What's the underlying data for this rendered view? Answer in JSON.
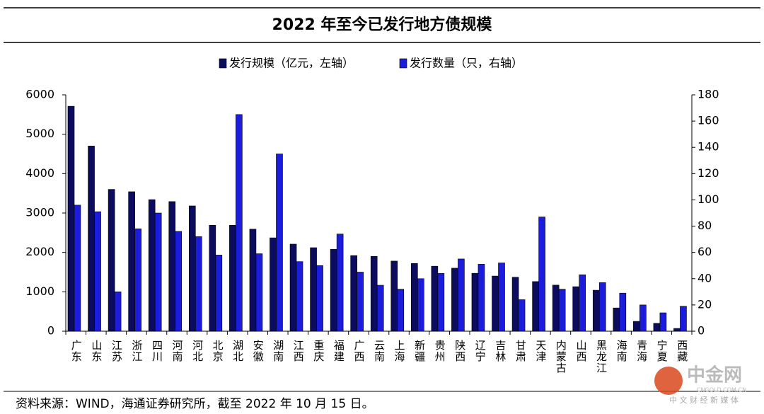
{
  "chart_data": {
    "type": "bar",
    "title": "2022 年至今已发行地方债规模",
    "categories": [
      "广东",
      "山东",
      "江苏",
      "浙江",
      "四川",
      "河南",
      "河北",
      "北京",
      "湖北",
      "安徽",
      "湖南",
      "江西",
      "重庆",
      "福建",
      "广西",
      "云南",
      "上海",
      "新疆",
      "贵州",
      "陕西",
      "辽宁",
      "吉林",
      "甘肃",
      "天津",
      "内蒙古",
      "山西",
      "黑龙江",
      "海南",
      "青海",
      "宁夏",
      "西藏"
    ],
    "series": [
      {
        "name": "发行规模（亿元，左轴）",
        "color": "#0c0c5e",
        "axis": "y",
        "values": [
          5710,
          4700,
          3600,
          3540,
          3340,
          3290,
          3180,
          2690,
          2690,
          2590,
          2370,
          2210,
          2120,
          2080,
          1920,
          1900,
          1780,
          1720,
          1650,
          1600,
          1470,
          1400,
          1370,
          1260,
          1170,
          1130,
          1040,
          590,
          250,
          200,
          70
        ]
      },
      {
        "name": "发行数量（只，右轴）",
        "color": "#1c1cdc",
        "axis": "y2",
        "values": [
          96,
          91,
          30,
          78,
          90,
          76,
          72,
          58,
          165,
          59,
          135,
          53,
          50,
          74,
          45,
          35,
          32,
          40,
          44,
          55,
          51,
          52,
          24,
          87,
          32,
          43,
          37,
          29,
          20,
          14,
          19
        ]
      }
    ],
    "ylim": [
      0,
      6000
    ],
    "yticks": [
      0,
      1000,
      2000,
      3000,
      4000,
      5000,
      6000
    ],
    "y2lim": [
      0,
      180
    ],
    "y2ticks": [
      0,
      20,
      40,
      60,
      80,
      100,
      120,
      140,
      160,
      180
    ],
    "grid": false,
    "source": "资料来源：WIND，海通证券研究所，截至 2022 年 10 月 15 日。",
    "watermark": {
      "name": "中金网",
      "site": "CNGOLD.COM.CN",
      "slogan": "中 文 财 经 新 媒 体"
    }
  }
}
